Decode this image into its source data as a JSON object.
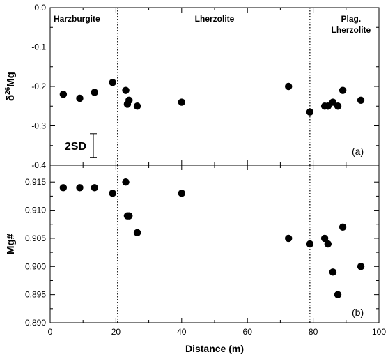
{
  "chart_data": [
    {
      "type": "scatter",
      "panel_label": "(a)",
      "ylabel": {
        "prefix": "δ",
        "sup": "26",
        "suffix": "Mg"
      },
      "xlim": [
        0,
        100
      ],
      "ylim": [
        -0.4,
        0.0
      ],
      "yticks": [
        "0.0",
        "-0.1",
        "-0.2",
        "-0.3",
        "-0.4"
      ],
      "grid": false,
      "x": [
        4,
        9,
        13.5,
        19,
        23,
        23.5,
        24,
        26.5,
        40,
        72.5,
        79,
        83.5,
        84.5,
        86,
        87.5,
        89,
        94.5
      ],
      "y": [
        -0.22,
        -0.23,
        -0.215,
        -0.19,
        -0.21,
        -0.245,
        -0.235,
        -0.25,
        -0.24,
        -0.2,
        -0.265,
        -0.25,
        -0.25,
        -0.24,
        -0.25,
        -0.21,
        -0.235
      ],
      "zones": [
        "Harzburgite",
        "Lherzolite",
        "Plag.\nLherzolite"
      ],
      "zone_boundaries": [
        20.5,
        79
      ],
      "error_bar": {
        "label": "2SD",
        "center": -0.35,
        "half_range": 0.03
      }
    },
    {
      "type": "scatter",
      "panel_label": "(b)",
      "ylabel": "Mg#",
      "xlabel": "Distance (m)",
      "xlim": [
        0,
        100
      ],
      "ylim": [
        0.89,
        0.918
      ],
      "xticks": [
        "0",
        "20",
        "40",
        "60",
        "80",
        "100"
      ],
      "yticks": [
        "0.915",
        "0.910",
        "0.905",
        "0.900",
        "0.895",
        "0.890"
      ],
      "grid": false,
      "x": [
        4,
        9,
        13.5,
        19,
        23,
        23.5,
        24,
        26.5,
        40,
        72.5,
        79,
        83.5,
        84.5,
        86,
        87.5,
        89,
        94.5
      ],
      "y": [
        0.914,
        0.914,
        0.914,
        0.913,
        0.915,
        0.909,
        0.909,
        0.906,
        0.913,
        0.905,
        0.904,
        0.905,
        0.904,
        0.899,
        0.895,
        0.907,
        0.9
      ],
      "zone_boundaries": [
        20.5,
        79
      ]
    }
  ]
}
